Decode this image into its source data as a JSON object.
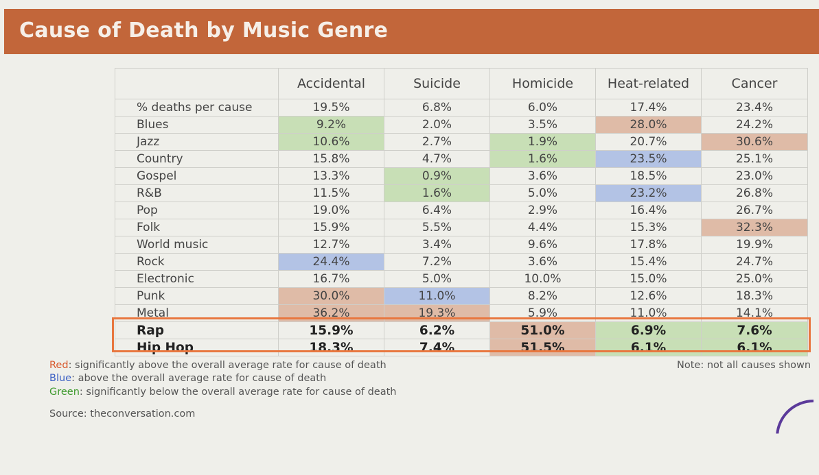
{
  "title": "Cause of Death by Music Genre",
  "table": {
    "columns": [
      "Accidental",
      "Suicide",
      "Homicide",
      "Heat-related",
      "Cancer"
    ],
    "rows": [
      {
        "label": "% deaths per cause",
        "cells": [
          "19.5%",
          "6.8%",
          "6.0%",
          "17.4%",
          "23.4%"
        ],
        "colors": [
          "",
          "",
          "",
          "",
          ""
        ]
      },
      {
        "label": "Blues",
        "cells": [
          "9.2%",
          "2.0%",
          "3.5%",
          "28.0%",
          "24.2%"
        ],
        "colors": [
          "green",
          "",
          "",
          "red",
          ""
        ]
      },
      {
        "label": "Jazz",
        "cells": [
          "10.6%",
          "2.7%",
          "1.9%",
          "20.7%",
          "30.6%"
        ],
        "colors": [
          "green",
          "",
          "green",
          "",
          "red"
        ]
      },
      {
        "label": "Country",
        "cells": [
          "15.8%",
          "4.7%",
          "1.6%",
          "23.5%",
          "25.1%"
        ],
        "colors": [
          "",
          "",
          "green",
          "blue",
          ""
        ]
      },
      {
        "label": "Gospel",
        "cells": [
          "13.3%",
          "0.9%",
          "3.6%",
          "18.5%",
          "23.0%"
        ],
        "colors": [
          "",
          "green",
          "",
          "",
          ""
        ]
      },
      {
        "label": "R&B",
        "cells": [
          "11.5%",
          "1.6%",
          "5.0%",
          "23.2%",
          "26.8%"
        ],
        "colors": [
          "",
          "green",
          "",
          "blue",
          ""
        ]
      },
      {
        "label": "Pop",
        "cells": [
          "19.0%",
          "6.4%",
          "2.9%",
          "16.4%",
          "26.7%"
        ],
        "colors": [
          "",
          "",
          "",
          "",
          ""
        ]
      },
      {
        "label": "Folk",
        "cells": [
          "15.9%",
          "5.5%",
          "4.4%",
          "15.3%",
          "32.3%"
        ],
        "colors": [
          "",
          "",
          "",
          "",
          "red"
        ]
      },
      {
        "label": "World music",
        "cells": [
          "12.7%",
          "3.4%",
          "9.6%",
          "17.8%",
          "19.9%"
        ],
        "colors": [
          "",
          "",
          "",
          "",
          ""
        ]
      },
      {
        "label": "Rock",
        "cells": [
          "24.4%",
          "7.2%",
          "3.6%",
          "15.4%",
          "24.7%"
        ],
        "colors": [
          "blue",
          "",
          "",
          "",
          ""
        ]
      },
      {
        "label": "Electronic",
        "cells": [
          "16.7%",
          "5.0%",
          "10.0%",
          "15.0%",
          "25.0%"
        ],
        "colors": [
          "",
          "",
          "",
          "",
          ""
        ]
      },
      {
        "label": "Punk",
        "cells": [
          "30.0%",
          "11.0%",
          "8.2%",
          "12.6%",
          "18.3%"
        ],
        "colors": [
          "red",
          "blue",
          "",
          "",
          ""
        ]
      },
      {
        "label": "Metal",
        "cells": [
          "36.2%",
          "19.3%",
          "5.9%",
          "11.0%",
          "14.1%"
        ],
        "colors": [
          "red",
          "red",
          "",
          "",
          ""
        ]
      },
      {
        "label": "Rap",
        "cells": [
          "15.9%",
          "6.2%",
          "51.0%",
          "6.9%",
          "7.6%"
        ],
        "colors": [
          "",
          "",
          "red",
          "green",
          "green"
        ],
        "bold": true
      },
      {
        "label": "Hip Hop",
        "cells": [
          "18.3%",
          "7.4%",
          "51.5%",
          "6.1%",
          "6.1%"
        ],
        "colors": [
          "",
          "",
          "red",
          "green",
          "green"
        ],
        "bold": true
      }
    ]
  },
  "legend": [
    {
      "key": "Red",
      "text": ": significantly above the overall average rate for cause of death",
      "color": "#d8572a"
    },
    {
      "key": "Blue",
      "text": ": above the overall average rate for cause of death",
      "color": "#3b5fc4"
    },
    {
      "key": "Green",
      "text": ": significantly below the overall average rate for cause of death",
      "color": "#3f9a2e"
    }
  ],
  "note": "Note: not all causes shown",
  "source": "Source: theconversation.com",
  "colors": {
    "banner": "#c2663a",
    "red_cell": "#dfbba7",
    "blue_cell": "#b3c3e5",
    "green_cell": "#c8dfb6",
    "highlight_box": "#e8773f"
  }
}
